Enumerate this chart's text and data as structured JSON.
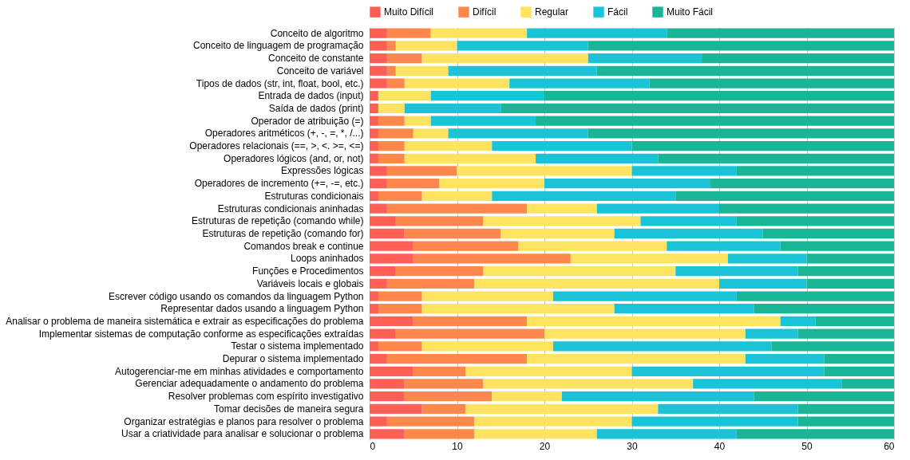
{
  "chart_data": {
    "type": "bar",
    "orientation": "horizontal",
    "stacked": true,
    "categories": [
      "Conceito de algoritmo",
      "Conceito de linguagem de programação",
      "Conceito de constante",
      "Conceito de variável",
      "Tipos de dados (str, int, float, bool, etc.)",
      "Entrada de dados (input)",
      "Saída de dados (print)",
      "Operador de atribuição (=)",
      "Operadores aritméticos (+, -, =, *, /...)",
      "Operadores relacionais (==, >, <. >=, <=)",
      "Operadores lógicos (and, or, not)",
      "Expressões lógicas",
      "Operadores de incremento (+=, -=, etc.)",
      "Estruturas condicionais",
      "Estruturas condicionais aninhadas",
      "Estruturas de repetição (comando while)",
      "Estruturas de repetição (comando for)",
      "Comandos break e continue",
      "Loops aninhados",
      "Funções e Procedimentos",
      "Variáveis locais e globais",
      "Escrever código usando os comandos da linguagem Python",
      "Representar dados usando a linguagem Python",
      "Analisar o problema de maneira sistemática e extrair as especificações do problema",
      "Implementar sistemas de computação conforme as especificações extraídas",
      "Testar o sistema implementado",
      "Depurar o sistema implementado",
      "Autogerenciar-me em minhas atividades e comportamento",
      "Gerenciar adequadamente o andamento do problema",
      "Resolver problemas com espírito investigativo",
      "Tomar decisões de maneira segura",
      "Organizar estratégias e planos para resolver o problema",
      "Usar a criatividade para analisar e solucionar o problema"
    ],
    "series": [
      {
        "name": "Muito Difícil",
        "color": "#fe5f55",
        "values": [
          2,
          2,
          2,
          2,
          2,
          1,
          1,
          1,
          1,
          1,
          1,
          2,
          2,
          1,
          2,
          3,
          4,
          5,
          5,
          3,
          2,
          1,
          1,
          5,
          3,
          1,
          2,
          5,
          4,
          4,
          6,
          2,
          4
        ]
      },
      {
        "name": "Difícil",
        "color": "#fe884c",
        "values": [
          5,
          1,
          4,
          1,
          2,
          0,
          0,
          3,
          4,
          3,
          3,
          8,
          6,
          5,
          16,
          10,
          11,
          12,
          18,
          10,
          10,
          5,
          5,
          13,
          17,
          5,
          16,
          6,
          9,
          10,
          5,
          10,
          8
        ]
      },
      {
        "name": "Regular",
        "color": "#fee360",
        "values": [
          11,
          7,
          19,
          6,
          12,
          6,
          3,
          3,
          4,
          10,
          15,
          20,
          12,
          8,
          8,
          18,
          13,
          17,
          18,
          22,
          28,
          15,
          22,
          29,
          23,
          15,
          25,
          19,
          24,
          8,
          22,
          18,
          14
        ]
      },
      {
        "name": "Fácil",
        "color": "#1ac4d6",
        "values": [
          16,
          15,
          13,
          17,
          16,
          13,
          11,
          12,
          16,
          16,
          14,
          12,
          19,
          21,
          14,
          11,
          17,
          13,
          9,
          14,
          10,
          21,
          16,
          4,
          6,
          25,
          9,
          22,
          17,
          22,
          16,
          19,
          16
        ]
      },
      {
        "name": "Muito Fácil",
        "color": "#19b596",
        "values": [
          26,
          35,
          22,
          34,
          28,
          40,
          45,
          41,
          35,
          30,
          27,
          18,
          21,
          25,
          20,
          18,
          15,
          13,
          10,
          11,
          10,
          18,
          16,
          9,
          11,
          14,
          8,
          8,
          6,
          16,
          11,
          11,
          18
        ]
      }
    ],
    "xlim": [
      0,
      60
    ],
    "xticks": [
      0,
      10,
      20,
      30,
      40,
      50,
      60
    ],
    "grid": "x",
    "legend": "top"
  }
}
